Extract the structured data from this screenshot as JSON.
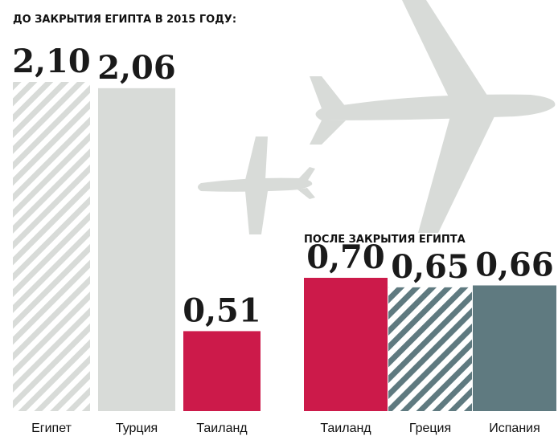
{
  "chart_data": [
    {
      "type": "bar",
      "title": "ДО ЗАКРЫТИЯ ЕГИПТА В 2015 ГОДУ:",
      "categories": [
        "Египет",
        "Турция",
        "Таиланд"
      ],
      "values": [
        2.1,
        2.06,
        0.51
      ],
      "value_labels": [
        "2,10",
        "2,06",
        "0,51"
      ],
      "colors": [
        "#d8dbd8",
        "#d8dbd8",
        "#cc1a4a"
      ],
      "hatched": [
        true,
        false,
        false
      ]
    },
    {
      "type": "bar",
      "title": "ПОСЛЕ ЗАКРЫТИЯ ЕГИПТА",
      "categories": [
        "Таиланд",
        "Греция",
        "Испания"
      ],
      "values": [
        0.7,
        0.65,
        0.66
      ],
      "value_labels": [
        "0,70",
        "0,65",
        "0,66"
      ],
      "colors": [
        "#cc1a4a",
        "#5f7a80",
        "#5f7a80"
      ],
      "hatched": [
        false,
        true,
        false
      ]
    }
  ]
}
